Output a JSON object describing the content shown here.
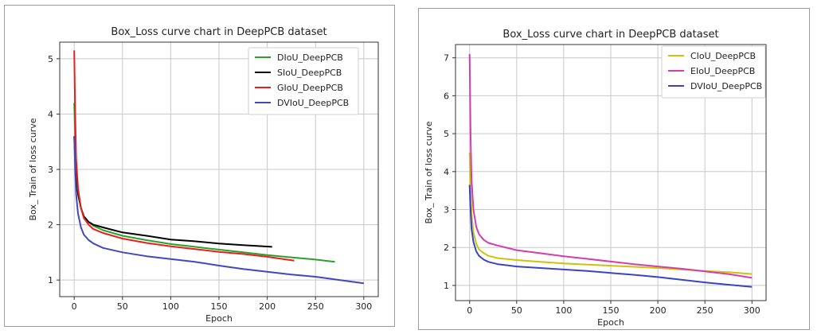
{
  "charts": [
    {
      "type": "line",
      "title": "Box_Loss curve chart in DeepPCB dataset",
      "xlabel": "Epoch",
      "ylabel": "Box_ Train of loss curve",
      "xlim": [
        -15,
        315
      ],
      "ylim": [
        0.7,
        5.3
      ],
      "xticks": [
        0,
        50,
        100,
        150,
        200,
        250,
        300
      ],
      "yticks": [
        1,
        2,
        3,
        4,
        5
      ],
      "legend": "top-right",
      "series": [
        {
          "name": "DIoU_DeepPCB",
          "color": "#2ca02c",
          "end": 270,
          "points": [
            [
              0,
              4.2
            ],
            [
              1,
              3.6
            ],
            [
              2,
              3.0
            ],
            [
              4,
              2.6
            ],
            [
              7,
              2.3
            ],
            [
              10,
              2.15
            ],
            [
              15,
              2.05
            ],
            [
              20,
              1.98
            ],
            [
              30,
              1.9
            ],
            [
              50,
              1.8
            ],
            [
              75,
              1.72
            ],
            [
              100,
              1.65
            ],
            [
              125,
              1.6
            ],
            [
              150,
              1.55
            ],
            [
              175,
              1.5
            ],
            [
              200,
              1.45
            ],
            [
              225,
              1.41
            ],
            [
              250,
              1.37
            ],
            [
              270,
              1.33
            ]
          ]
        },
        {
          "name": "SIoU_DeepPCB",
          "color": "#000000",
          "end": 205,
          "points": [
            [
              0,
              3.6
            ],
            [
              1,
              3.2
            ],
            [
              2,
              2.9
            ],
            [
              4,
              2.55
            ],
            [
              7,
              2.3
            ],
            [
              10,
              2.15
            ],
            [
              15,
              2.05
            ],
            [
              20,
              2.0
            ],
            [
              30,
              1.95
            ],
            [
              50,
              1.86
            ],
            [
              75,
              1.8
            ],
            [
              100,
              1.73
            ],
            [
              125,
              1.7
            ],
            [
              150,
              1.66
            ],
            [
              175,
              1.63
            ],
            [
              205,
              1.6
            ]
          ]
        },
        {
          "name": "GIoU_DeepPCB",
          "color": "#e8201c",
          "end": 228,
          "points": [
            [
              0,
              5.15
            ],
            [
              1,
              4.0
            ],
            [
              2,
              3.2
            ],
            [
              4,
              2.65
            ],
            [
              7,
              2.3
            ],
            [
              10,
              2.12
            ],
            [
              15,
              2.0
            ],
            [
              20,
              1.92
            ],
            [
              30,
              1.85
            ],
            [
              50,
              1.75
            ],
            [
              75,
              1.67
            ],
            [
              100,
              1.61
            ],
            [
              125,
              1.56
            ],
            [
              150,
              1.51
            ],
            [
              175,
              1.47
            ],
            [
              200,
              1.42
            ],
            [
              228,
              1.35
            ]
          ]
        },
        {
          "name": "DVIoU_DeepPCB",
          "color": "#4048c0",
          "end": 300,
          "points": [
            [
              0,
              3.6
            ],
            [
              1,
              3.0
            ],
            [
              2,
              2.55
            ],
            [
              4,
              2.2
            ],
            [
              7,
              1.95
            ],
            [
              10,
              1.82
            ],
            [
              15,
              1.72
            ],
            [
              20,
              1.66
            ],
            [
              30,
              1.58
            ],
            [
              50,
              1.5
            ],
            [
              75,
              1.43
            ],
            [
              100,
              1.38
            ],
            [
              125,
              1.33
            ],
            [
              150,
              1.26
            ],
            [
              175,
              1.2
            ],
            [
              200,
              1.15
            ],
            [
              225,
              1.1
            ],
            [
              250,
              1.06
            ],
            [
              275,
              1.0
            ],
            [
              300,
              0.94
            ]
          ]
        }
      ]
    },
    {
      "type": "line",
      "title": "Box_Loss curve chart in DeepPCB dataset",
      "xlabel": "Epoch",
      "ylabel": "Box_ Train of loss curve",
      "xlim": [
        -15,
        315
      ],
      "ylim": [
        0.6,
        7.35
      ],
      "xticks": [
        0,
        50,
        100,
        150,
        200,
        250,
        300
      ],
      "yticks": [
        1,
        2,
        3,
        4,
        5,
        6,
        7
      ],
      "legend": "top-right",
      "series": [
        {
          "name": "CIoU_DeepPCB",
          "color": "#cfc20a",
          "end": 300,
          "points": [
            [
              0,
              4.5
            ],
            [
              1,
              3.5
            ],
            [
              2,
              2.9
            ],
            [
              4,
              2.4
            ],
            [
              7,
              2.1
            ],
            [
              10,
              1.95
            ],
            [
              15,
              1.85
            ],
            [
              20,
              1.78
            ],
            [
              30,
              1.72
            ],
            [
              50,
              1.67
            ],
            [
              75,
              1.62
            ],
            [
              100,
              1.58
            ],
            [
              125,
              1.55
            ],
            [
              150,
              1.52
            ],
            [
              175,
              1.49
            ],
            [
              200,
              1.46
            ],
            [
              225,
              1.42
            ],
            [
              250,
              1.38
            ],
            [
              275,
              1.35
            ],
            [
              300,
              1.3
            ]
          ]
        },
        {
          "name": "EIoU_DeepPCB",
          "color": "#d43db0",
          "end": 300,
          "points": [
            [
              0,
              7.1
            ],
            [
              1,
              5.0
            ],
            [
              2,
              3.8
            ],
            [
              4,
              3.0
            ],
            [
              7,
              2.55
            ],
            [
              10,
              2.35
            ],
            [
              15,
              2.2
            ],
            [
              20,
              2.12
            ],
            [
              30,
              2.05
            ],
            [
              50,
              1.93
            ],
            [
              75,
              1.85
            ],
            [
              100,
              1.77
            ],
            [
              125,
              1.7
            ],
            [
              150,
              1.63
            ],
            [
              175,
              1.56
            ],
            [
              200,
              1.5
            ],
            [
              225,
              1.44
            ],
            [
              250,
              1.37
            ],
            [
              275,
              1.3
            ],
            [
              300,
              1.2
            ]
          ]
        },
        {
          "name": "DVIoU_DeepPCB",
          "color": "#3a44c0",
          "end": 300,
          "points": [
            [
              0,
              3.65
            ],
            [
              1,
              3.0
            ],
            [
              2,
              2.5
            ],
            [
              4,
              2.15
            ],
            [
              7,
              1.9
            ],
            [
              10,
              1.78
            ],
            [
              15,
              1.68
            ],
            [
              20,
              1.62
            ],
            [
              30,
              1.56
            ],
            [
              50,
              1.5
            ],
            [
              75,
              1.46
            ],
            [
              100,
              1.42
            ],
            [
              125,
              1.38
            ],
            [
              150,
              1.33
            ],
            [
              175,
              1.28
            ],
            [
              200,
              1.22
            ],
            [
              225,
              1.15
            ],
            [
              250,
              1.08
            ],
            [
              275,
              1.02
            ],
            [
              300,
              0.96
            ]
          ]
        }
      ]
    }
  ]
}
